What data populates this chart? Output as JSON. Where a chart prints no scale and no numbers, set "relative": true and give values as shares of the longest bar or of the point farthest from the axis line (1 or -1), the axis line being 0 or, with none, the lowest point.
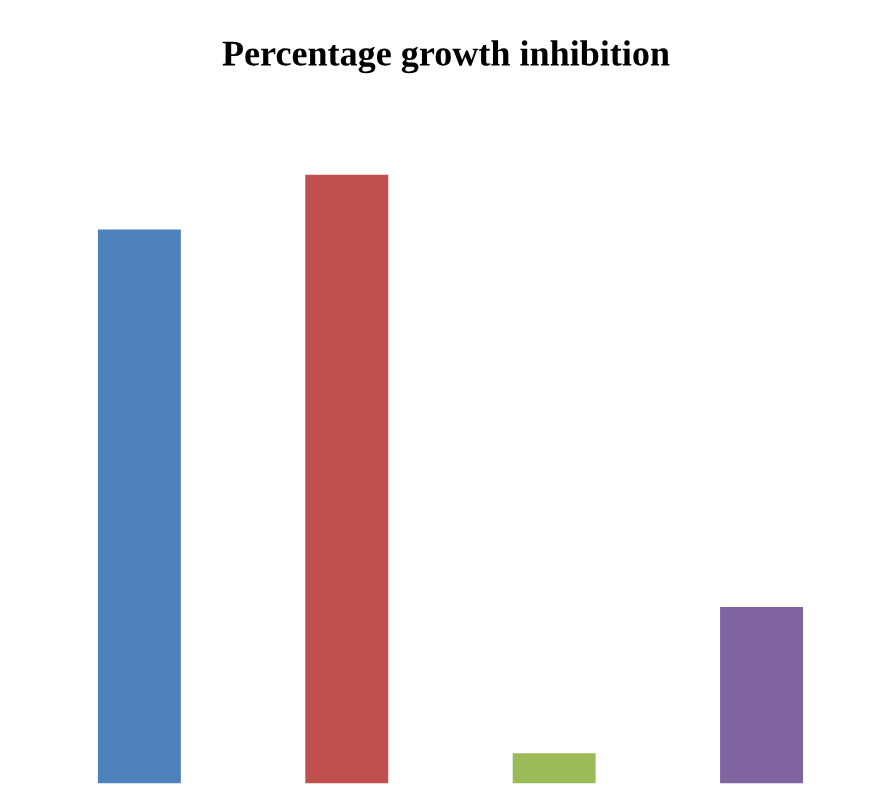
{
  "chart_data": {
    "type": "bar",
    "title": "Percentage growth inhibition",
    "categories": [
      null,
      null,
      null,
      null
    ],
    "values": [
      0.91,
      1,
      0.05,
      0.29
    ],
    "colors": [
      "#4f81bd",
      "#c0504d",
      "#9bbb59",
      "#8064a2"
    ],
    "relative": true,
    "grid": false,
    "legend": false
  }
}
